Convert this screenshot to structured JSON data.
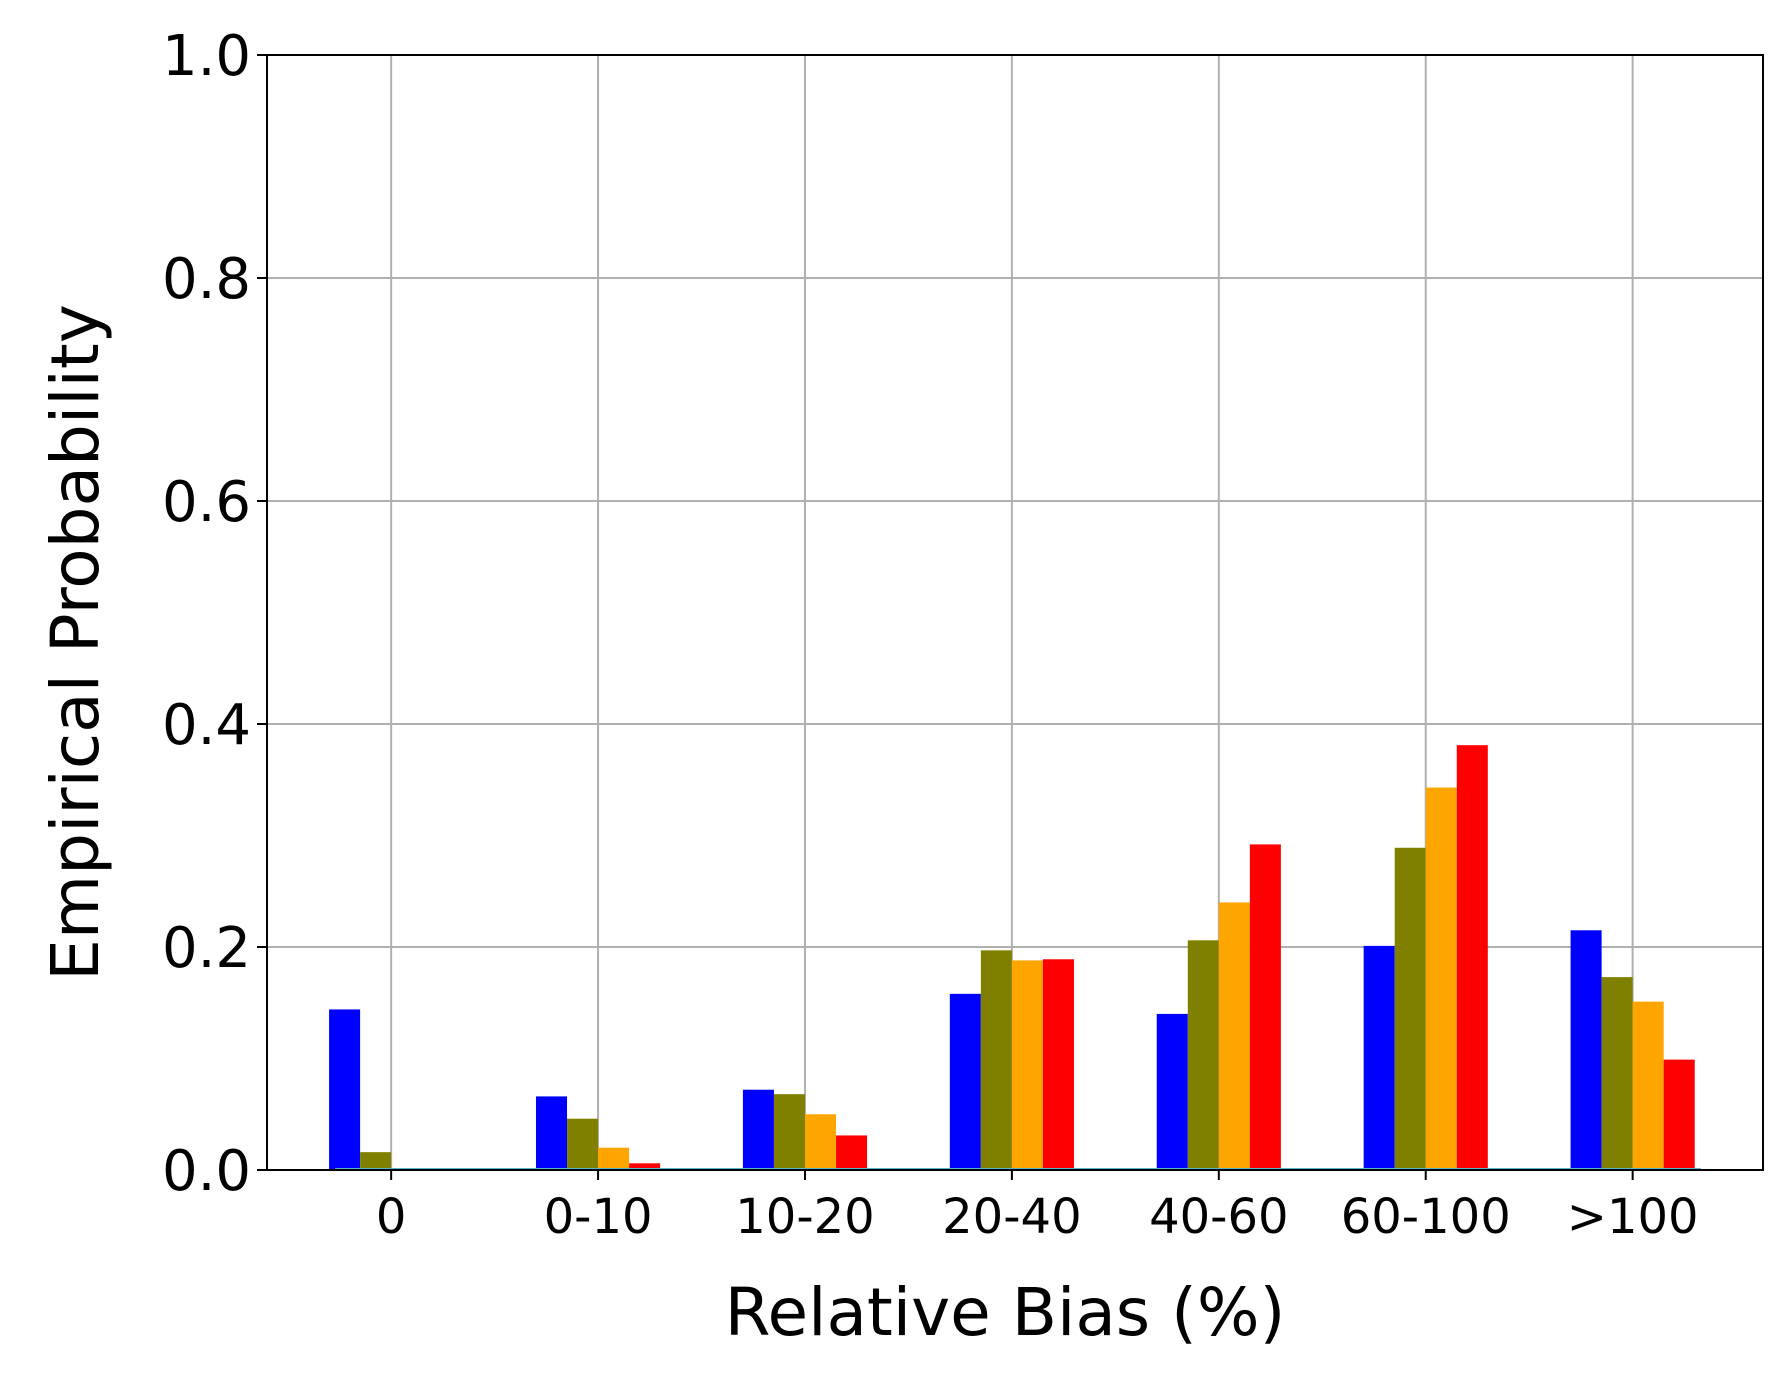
{
  "chart_data": {
    "type": "bar",
    "xlabel": "Relative Bias (%)",
    "ylabel": "Empirical Probability",
    "ylim": [
      0,
      1.0
    ],
    "yticks": [
      "0.0",
      "0.2",
      "0.4",
      "0.6",
      "0.8",
      "1.0"
    ],
    "categories": [
      "0",
      "0-10",
      "10-20",
      "20-40",
      "40-60",
      "60-100",
      ">100"
    ],
    "grid": true,
    "legend": "none",
    "series": [
      {
        "color": "#0000ff",
        "values": [
          0.144,
          0.066,
          0.072,
          0.158,
          0.14,
          0.201,
          0.215
        ]
      },
      {
        "color": "#808000",
        "values": [
          0.016,
          0.046,
          0.068,
          0.197,
          0.206,
          0.289,
          0.173
        ]
      },
      {
        "color": "#ffa500",
        "values": [
          0.0,
          0.02,
          0.05,
          0.188,
          0.24,
          0.343,
          0.151
        ]
      },
      {
        "color": "#ff0000",
        "values": [
          0.0,
          0.006,
          0.031,
          0.189,
          0.292,
          0.381,
          0.099
        ]
      }
    ]
  }
}
